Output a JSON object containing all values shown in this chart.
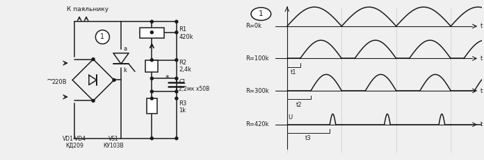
{
  "bg_color": "#f0f0f0",
  "line_color": "#1a1a1a",
  "text_color": "#1a1a1a",
  "circuit": {
    "title": "К паяльнику",
    "voltage": "220В",
    "vd_label": "VD1-VD4\nКД209",
    "vs_label": "VS1\nКУ103В",
    "r1_label": "R1\n420k",
    "r2_label": "R2\n2,4k",
    "c1_label": "C1\n2,2мк х50В",
    "r3_label": "R3\n1k",
    "node_a": "a",
    "node_k": "k",
    "circle1_label": "1"
  },
  "waveforms": {
    "row_labels": [
      "R=0k",
      "R=100k",
      "R=300k",
      "R=420k"
    ],
    "t_labels": [
      "t1",
      "t2",
      "t3"
    ],
    "u_label": "U",
    "circle1_label": "1"
  }
}
